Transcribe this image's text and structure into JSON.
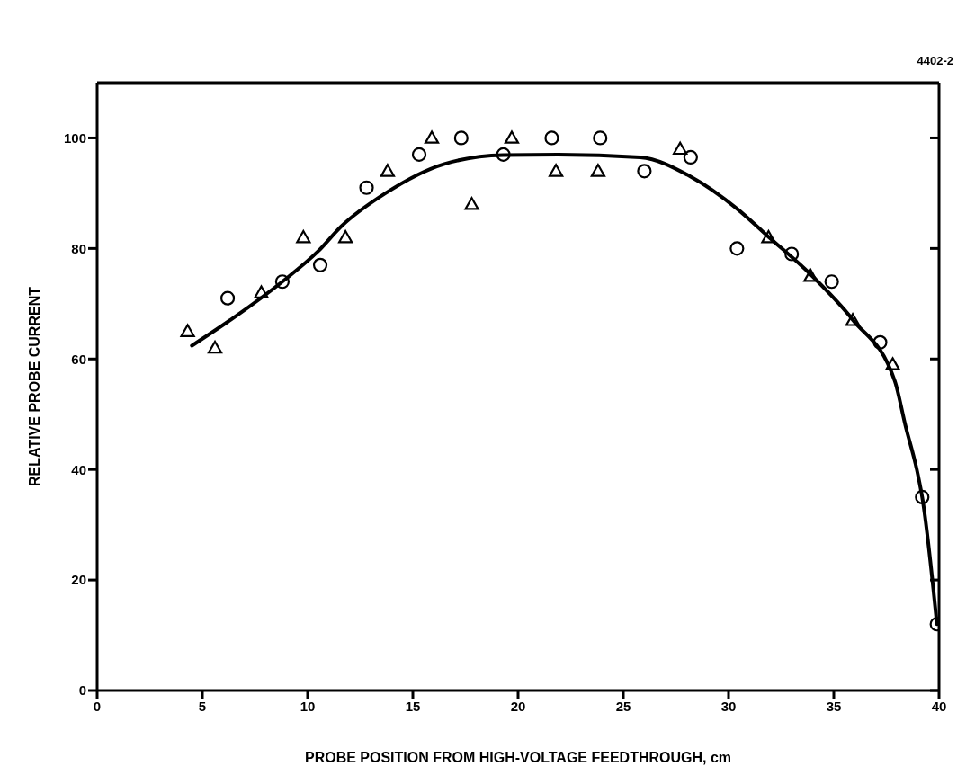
{
  "chart_data": {
    "type": "scatter",
    "xlabel": "PROBE POSITION FROM HIGH-VOLTAGE FEEDTHROUGH, cm",
    "ylabel": "RELATIVE PROBE CURRENT",
    "annotations": [
      "4402-2"
    ],
    "xlim": [
      0,
      40
    ],
    "xticks": [
      0,
      5,
      10,
      15,
      20,
      25,
      30,
      35,
      40
    ],
    "ylim": [
      0,
      110
    ],
    "yticks": [
      0,
      20,
      40,
      60,
      80,
      100
    ],
    "series": [
      {
        "marker": "triangle",
        "color": "#000000",
        "x": [
          4.3,
          5.6,
          7.8,
          9.8,
          11.8,
          13.8,
          15.9,
          17.8,
          19.7,
          21.8,
          23.8,
          27.7,
          31.9,
          33.9,
          35.9,
          37.8
        ],
        "values": [
          65,
          62,
          72,
          82,
          82,
          94,
          100,
          88,
          100,
          94,
          94,
          98,
          82,
          75,
          67,
          59
        ]
      },
      {
        "marker": "circle",
        "color": "#000000",
        "x": [
          6.2,
          8.8,
          10.6,
          12.8,
          15.3,
          17.3,
          19.3,
          21.6,
          23.9,
          26.0,
          28.2,
          30.4,
          33.0,
          34.9,
          37.2,
          39.2,
          39.9
        ],
        "values": [
          71,
          74,
          77,
          91,
          97,
          100,
          97,
          100,
          100,
          94,
          96.5,
          80,
          79,
          74,
          63,
          35,
          12
        ]
      },
      {
        "type": "line",
        "marker": "none",
        "line_style": "solid",
        "color": "#000000",
        "x": [
          4.5,
          6.5,
          8.8,
          10.5,
          11.6,
          13.7,
          16.5,
          19.3,
          21.9,
          25.8,
          28.2,
          30.4,
          31.9,
          33.9,
          35.9,
          37.9,
          38.4,
          39.0,
          39.2,
          39.9
        ],
        "values": [
          62.4,
          67.5,
          74,
          79.5,
          84,
          90,
          95.3,
          96.9,
          97,
          96.5,
          93,
          87.2,
          82.1,
          75.3,
          67.1,
          56,
          48,
          39,
          35,
          12
        ]
      }
    ]
  }
}
